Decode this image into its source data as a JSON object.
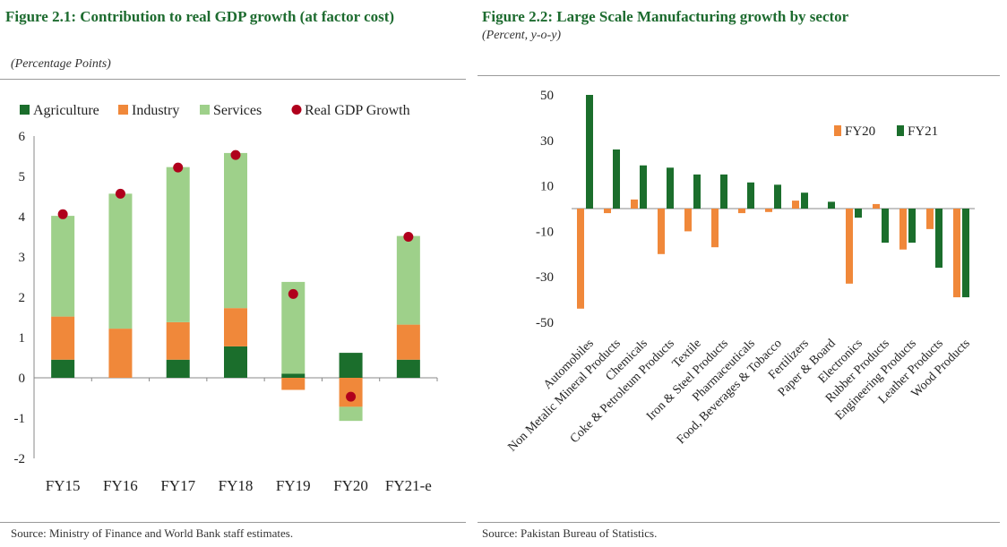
{
  "left": {
    "title": "Figure 2.1: Contribution to real GDP growth (at factor cost)",
    "subtitle": "(Percentage Points)",
    "source": "Source: Ministry of Finance and World Bank staff estimates."
  },
  "right": {
    "title": "Figure 2.2: Large Scale Manufacturing growth by sector",
    "subtitle": "(Percent, y-o-y)",
    "source": "Source: Pakistan Bureau of Statistics."
  },
  "colors": {
    "agriculture": "#1b6e2c",
    "industry": "#f0883a",
    "services": "#9ed08a",
    "gdp": "#b0001c",
    "fy20": "#f0883a",
    "fy21": "#1b6e2c"
  },
  "chart_data": [
    {
      "type": "bar",
      "stacked": true,
      "categories": [
        "FY15",
        "FY16",
        "FY17",
        "FY18",
        "FY19",
        "FY20",
        "FY21-e"
      ],
      "series": [
        {
          "name": "Agriculture",
          "values": [
            0.45,
            0.0,
            0.45,
            0.78,
            0.1,
            0.62,
            0.45
          ]
        },
        {
          "name": "Industry",
          "values": [
            1.07,
            1.22,
            0.93,
            0.95,
            -0.3,
            -0.72,
            0.87
          ]
        },
        {
          "name": "Services",
          "values": [
            2.5,
            3.35,
            3.85,
            3.85,
            2.28,
            -0.35,
            2.2
          ]
        }
      ],
      "line_series": {
        "name": "Real GDP Growth",
        "values": [
          4.06,
          4.57,
          5.22,
          5.53,
          2.08,
          -0.47,
          3.5
        ]
      },
      "yticks": [
        "6",
        "5",
        "4",
        "3",
        "2",
        "1",
        "0",
        "-1",
        "-2"
      ],
      "ylim": [
        -2,
        6
      ],
      "legend": [
        "Agriculture",
        "Industry",
        "Services",
        "Real GDP Growth"
      ],
      "legend_position": "top-left"
    },
    {
      "type": "bar",
      "categories": [
        "Automobiles",
        "Non Metalic Mineral Products",
        "Chemicals",
        "Coke & Petroleum Products",
        "Textile",
        "Iron & Steel Products",
        "Pharmaceuticals",
        "Food, Beverages & Tobacco",
        "Fertilizers",
        "Paper & Board",
        "Electronics",
        "Rubber Products",
        "Engineering Products",
        "Leather Products",
        "Wood Products"
      ],
      "series": [
        {
          "name": "FY20",
          "values": [
            -44,
            -2,
            4,
            -20,
            -10,
            -17,
            -2,
            -1.5,
            3.5,
            0,
            -33,
            2,
            -18,
            -9,
            -39
          ]
        },
        {
          "name": "FY21",
          "values": [
            50,
            26,
            19,
            18,
            15,
            15,
            11.5,
            10.5,
            7,
            3,
            -4,
            -15,
            -15,
            -26,
            -39
          ]
        }
      ],
      "yticks": [
        "50",
        "30",
        "10",
        "-10",
        "-30",
        "-50"
      ],
      "ylim": [
        -50,
        50
      ],
      "legend": [
        "FY20",
        "FY21"
      ],
      "legend_position": "top-right"
    }
  ]
}
